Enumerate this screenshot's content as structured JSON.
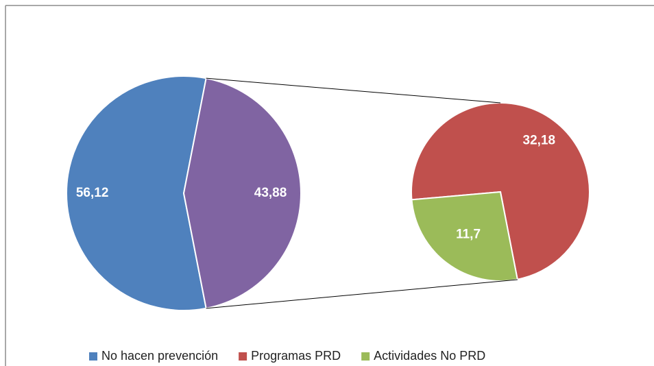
{
  "chart_data": {
    "type": "pie",
    "categories": [
      "No hacen prevención",
      null
    ],
    "values": [
      56.12,
      43.88
    ],
    "value_labels": [
      "56,12",
      "43,88"
    ],
    "colors": [
      "#4f81bd",
      "#8064a2"
    ],
    "secondary": {
      "categories": [
        "Programas PRD",
        "Actividades No PRD"
      ],
      "values": [
        32.18,
        11.7
      ],
      "value_labels": [
        "32,18",
        "11,7"
      ],
      "colors": [
        "#c0504d",
        "#9bbb59"
      ]
    },
    "legend": "bottom"
  }
}
